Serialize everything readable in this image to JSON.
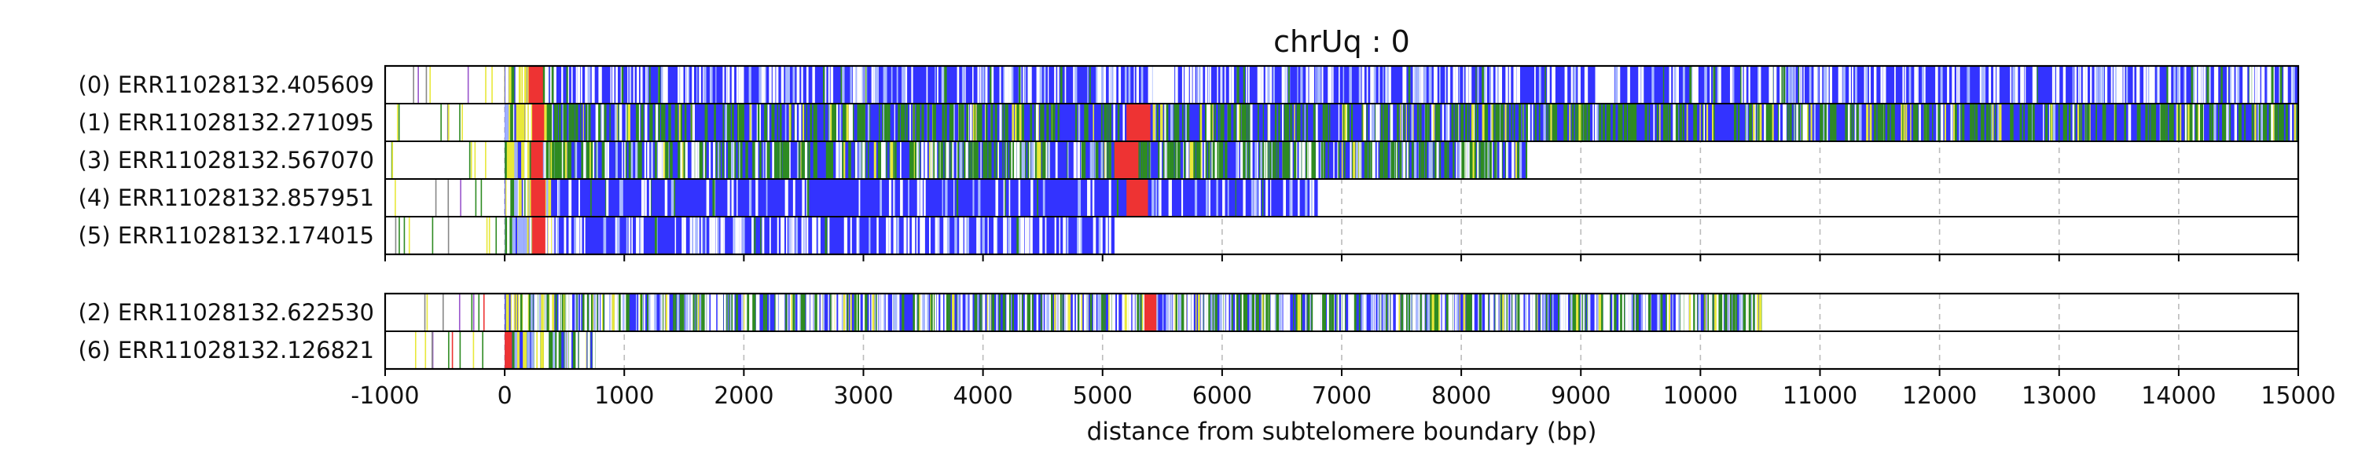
{
  "chart_data": {
    "type": "heatmap",
    "title": "chrUq : 0",
    "xlabel": "distance from subtelomere boundary (bp)",
    "xlim": [
      -1000,
      15000
    ],
    "xticks": [
      -1000,
      0,
      1000,
      2000,
      3000,
      4000,
      5000,
      6000,
      7000,
      8000,
      9000,
      10000,
      11000,
      12000,
      13000,
      14000,
      15000
    ],
    "tick_labels": [
      "-1000",
      "0",
      "1000",
      "2000",
      "3000",
      "4000",
      "5000",
      "6000",
      "7000",
      "8000",
      "9000",
      "10000",
      "11000",
      "12000",
      "13000",
      "14000",
      "15000"
    ],
    "grid": "vertical dashed",
    "colors": {
      "blue": "#3333ff",
      "green": "#2e8b22",
      "yellow": "#e8e83a",
      "red": "#ee3333",
      "purple": "#9955cc",
      "gray": "#888888"
    },
    "groups": [
      {
        "reads": [
          {
            "label": "(0) ERR11028132.405609",
            "start": -1000,
            "end": 15000,
            "fill_start": 0,
            "fill_end": 15000,
            "green_density": 0.02,
            "yellow_density": 0.0,
            "white_density": 0.35,
            "gaps": [
              [
                5420,
                5600
              ],
              [
                9120,
                9280
              ]
            ],
            "red": [
              [
                200,
                320
              ]
            ]
          },
          {
            "label": "(1) ERR11028132.271095",
            "start": -1000,
            "end": 15000,
            "fill_start": 0,
            "fill_end": 15000,
            "green_density": 0.3,
            "yellow_density": 0.05,
            "white_density": 0.1,
            "gaps": [],
            "red": [
              [
                230,
                330
              ],
              [
                5200,
                5400
              ]
            ]
          },
          {
            "label": "(3) ERR11028132.567070",
            "start": -1000,
            "end": 8550,
            "fill_start": 0,
            "fill_end": 8550,
            "green_density": 0.35,
            "yellow_density": 0.04,
            "white_density": 0.25,
            "gaps": [],
            "red": [
              [
                220,
                320
              ],
              [
                5100,
                5300
              ]
            ]
          },
          {
            "label": "(4) ERR11028132.857951",
            "start": -1000,
            "end": 6800,
            "fill_start": 0,
            "fill_end": 6800,
            "green_density": 0.02,
            "yellow_density": 0.0,
            "white_density": 0.12,
            "gaps": [],
            "red": [
              [
                220,
                340
              ],
              [
                5200,
                5380
              ]
            ]
          },
          {
            "label": "(5) ERR11028132.174015",
            "start": -1000,
            "end": 5100,
            "fill_start": 0,
            "fill_end": 5100,
            "green_density": 0.02,
            "yellow_density": 0.0,
            "white_density": 0.28,
            "gaps": [],
            "red": [
              [
                230,
                340
              ]
            ]
          }
        ]
      },
      {
        "reads": [
          {
            "label": "(2) ERR11028132.622530",
            "start": -1000,
            "end": 10500,
            "fill_start": 0,
            "fill_end": 10500,
            "green_density": 0.25,
            "yellow_density": 0.06,
            "white_density": 0.45,
            "gaps": [],
            "red": [
              [
                5350,
                5450
              ]
            ]
          },
          {
            "label": "(6) ERR11028132.126821",
            "start": -1000,
            "end": 750,
            "fill_start": 0,
            "fill_end": 750,
            "green_density": 0.35,
            "yellow_density": 0.03,
            "white_density": 0.25,
            "gaps": [],
            "red": [
              [
                0,
                60
              ]
            ]
          }
        ]
      }
    ]
  }
}
